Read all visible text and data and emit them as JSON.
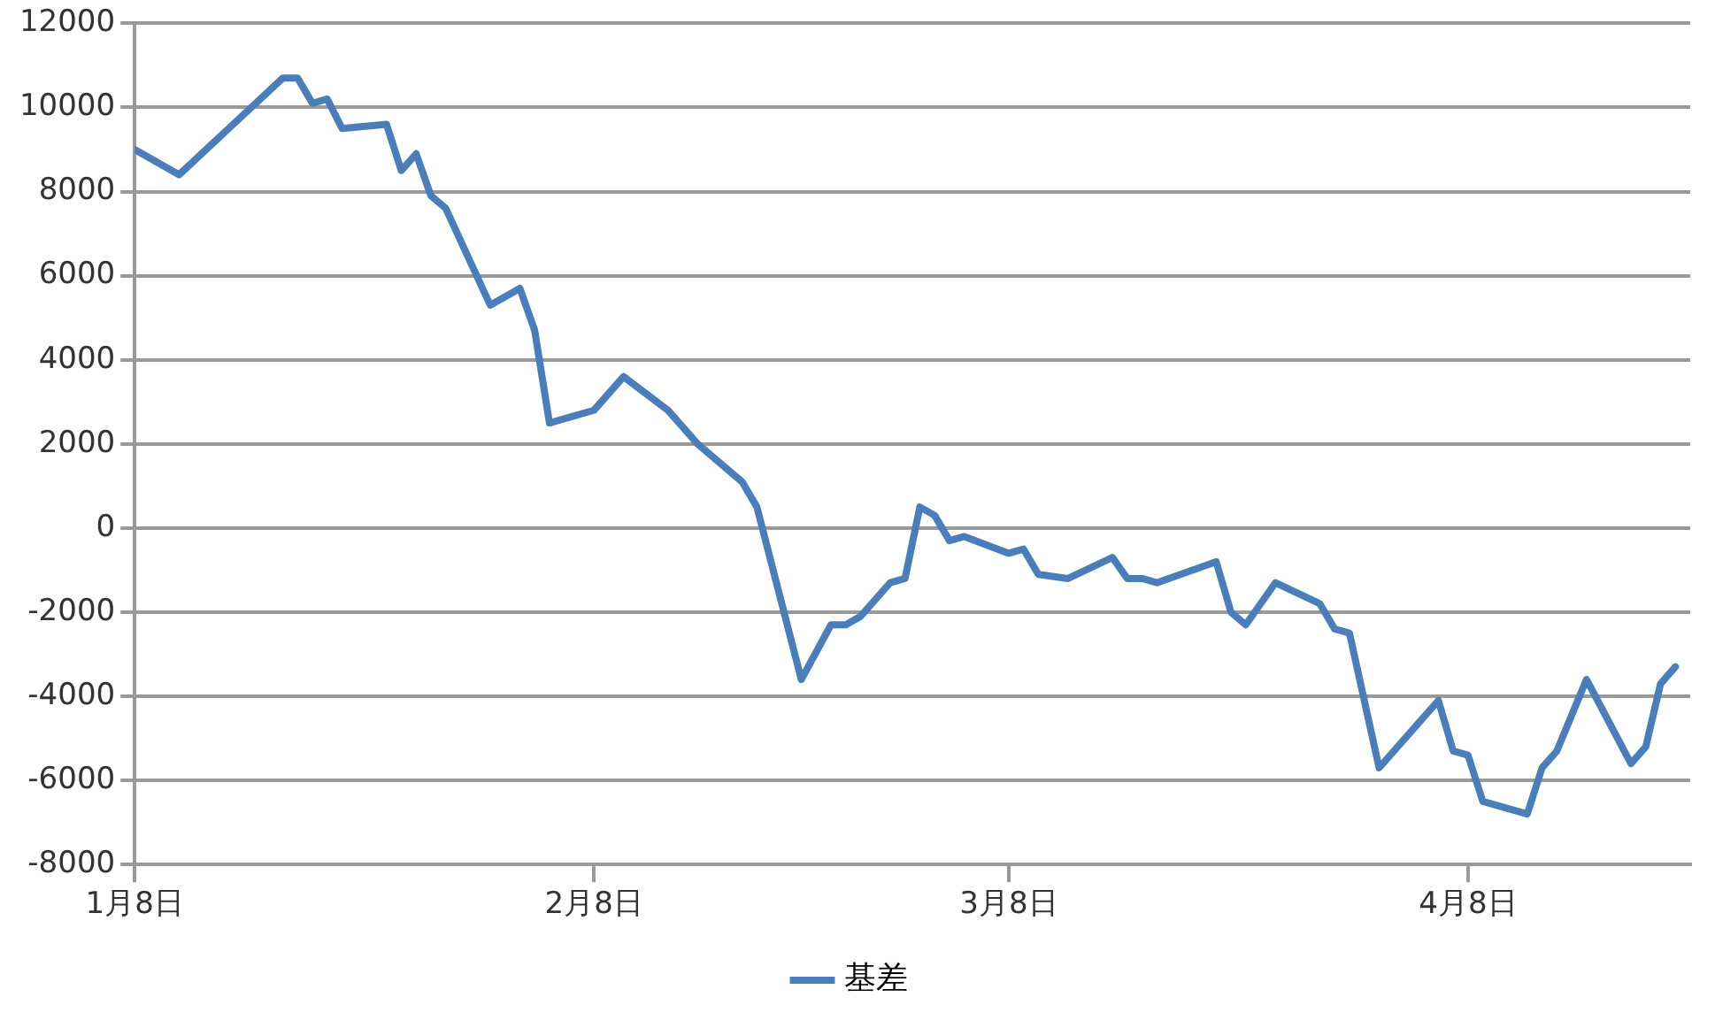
{
  "chart_data": {
    "type": "line",
    "x": [
      "--01-08",
      "--01-11",
      "--01-18",
      "--01-19",
      "--01-20",
      "--01-21",
      "--01-22",
      "--01-25",
      "--01-26",
      "--01-27",
      "--01-28",
      "--01-29",
      "--02-01",
      "--02-03",
      "--02-04",
      "--02-05",
      "--02-08",
      "--02-10",
      "--02-13",
      "--02-15",
      "--02-18",
      "--02-19",
      "--02-22",
      "--02-24",
      "--02-25",
      "--02-26",
      "--02-28",
      "--03-01",
      "--03-02",
      "--03-03",
      "--03-04",
      "--03-05",
      "--03-08",
      "--03-09",
      "--03-10",
      "--03-12",
      "--03-15",
      "--03-16",
      "--03-17",
      "--03-18",
      "--03-22",
      "--03-23",
      "--03-24",
      "--03-26",
      "--03-29",
      "--03-30",
      "--03-31",
      "--04-02",
      "--04-06",
      "--04-07",
      "--04-08",
      "--04-09",
      "--04-12",
      "--04-13",
      "--04-14",
      "--04-16",
      "--04-19",
      "--04-20",
      "--04-21",
      "--04-22"
    ],
    "series": [
      {
        "name": "基差",
        "color": "#4a7ebb",
        "values": [
          9000,
          8400,
          10700,
          10700,
          10100,
          10200,
          9500,
          9600,
          8500,
          8900,
          7900,
          7600,
          5300,
          5700,
          4700,
          2500,
          2800,
          3600,
          2800,
          2000,
          1100,
          500,
          -3600,
          -2300,
          -2300,
          -2100,
          -1300,
          -1200,
          500,
          300,
          -300,
          -200,
          -600,
          -500,
          -1100,
          -1200,
          -700,
          -1200,
          -1200,
          -1300,
          -800,
          -2000,
          -2300,
          -1300,
          -1800,
          -2400,
          -2500,
          -5700,
          -4100,
          -5300,
          -5400,
          -6500,
          -6800,
          -5700,
          -5300,
          -3600,
          -5600,
          -5200,
          -3700,
          -3300
        ]
      }
    ],
    "xlim": [
      "--01-08",
      "--04-23"
    ],
    "xticks": [
      {
        "value": "--01-08",
        "label": "1月8日"
      },
      {
        "value": "--02-08",
        "label": "2月8日"
      },
      {
        "value": "--03-08",
        "label": "3月8日"
      },
      {
        "value": "--04-08",
        "label": "4月8日"
      }
    ],
    "ylim": [
      -8000,
      12000
    ],
    "yticks": [
      -8000,
      -6000,
      -4000,
      -2000,
      0,
      2000,
      4000,
      6000,
      8000,
      10000,
      12000
    ],
    "grid": "y",
    "legend": "bottom",
    "marker": "none",
    "line_style": "solid"
  }
}
